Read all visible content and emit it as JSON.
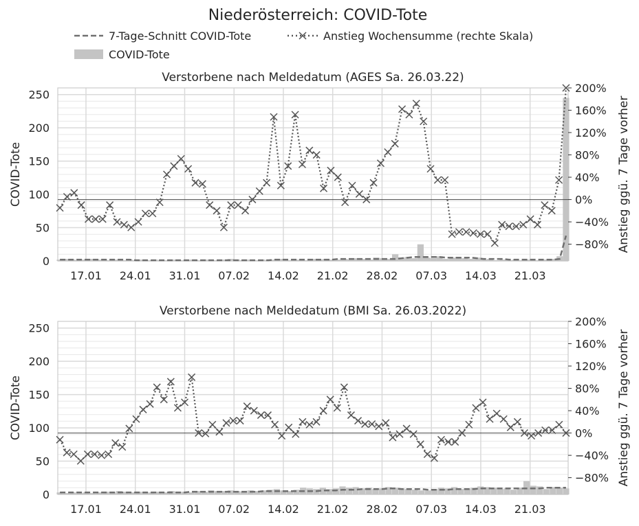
{
  "figure_title": "Niederösterreich: COVID-Tote",
  "legend": {
    "avg_label": "7-Tage-Schnitt COVID-Tote",
    "bar_label": "COVID-Tote",
    "change_label": "Anstieg Wochensumme (rechte Skala)",
    "placement": "top"
  },
  "colors": {
    "bar": "#c4c4c4",
    "avg_line": "#707070",
    "change_line": "#555555",
    "grid": "#dadada",
    "zero_line": "#444444"
  },
  "x_tick_labels": [
    "17.01",
    "24.01",
    "31.01",
    "07.02",
    "14.02",
    "21.02",
    "28.02",
    "07.03",
    "14.03",
    "21.03"
  ],
  "chart_data": [
    {
      "type": "bar",
      "title": "Verstorbene nach Meldedatum (AGES Sa. 26.03.22)",
      "ylabel": "COVID-Tote",
      "ylabel_right": "Anstieg ggü. 7 Tage vorher",
      "ylim": [
        0,
        260
      ],
      "y_ticks": [
        0,
        50,
        100,
        150,
        200,
        250
      ],
      "y2lim": [
        -110,
        200
      ],
      "y2_ticks": [
        "−80%",
        "−40%",
        "0%",
        "40%",
        "80%",
        "120%",
        "160%",
        "200%"
      ],
      "y2_tick_values": [
        -80,
        -40,
        0,
        40,
        80,
        120,
        160,
        200
      ],
      "grid": true,
      "x_start": "13.01",
      "x_end": "26.03",
      "bars": [
        2,
        3,
        2,
        1,
        2,
        3,
        2,
        2,
        1,
        2,
        1,
        2,
        1,
        2,
        1,
        2,
        1,
        1,
        2,
        1,
        1,
        2,
        1,
        2,
        1,
        1,
        2,
        3,
        2,
        1,
        2,
        1,
        2,
        1,
        2,
        3,
        1,
        2,
        2,
        1,
        3,
        2,
        3,
        2,
        2,
        3,
        2,
        4,
        3,
        2,
        5,
        4,
        3,
        10,
        5,
        6,
        4,
        25,
        5,
        4,
        7,
        3,
        5,
        6,
        4,
        3,
        5,
        2,
        3,
        1,
        2,
        1,
        2,
        1,
        2,
        1,
        1,
        2,
        3,
        7,
        245
      ],
      "avg": [
        2,
        2,
        2,
        2,
        2,
        2,
        2,
        2,
        2,
        2,
        2,
        2,
        1,
        1,
        1,
        1,
        1,
        1,
        1,
        1,
        1,
        1,
        1,
        1,
        1,
        1,
        1,
        1,
        1,
        1,
        1,
        1,
        1,
        1,
        2,
        2,
        2,
        2,
        2,
        2,
        2,
        2,
        2,
        2,
        3,
        3,
        3,
        3,
        3,
        3,
        3,
        3,
        3,
        3,
        4,
        5,
        6,
        6,
        6,
        6,
        6,
        5,
        5,
        5,
        5,
        5,
        4,
        3,
        3,
        3,
        3,
        2,
        2,
        2,
        2,
        2,
        2,
        2,
        2,
        3,
        38
      ],
      "change": [
        -15,
        5,
        12,
        -10,
        -35,
        -35,
        -35,
        -10,
        -40,
        -45,
        -50,
        -40,
        -25,
        -25,
        -5,
        45,
        60,
        73,
        55,
        30,
        28,
        -10,
        -20,
        -50,
        -10,
        -10,
        -20,
        0,
        15,
        30,
        148,
        25,
        60,
        152,
        63,
        88,
        80,
        20,
        52,
        40,
        -5,
        25,
        10,
        0,
        30,
        65,
        85,
        100,
        162,
        152,
        172,
        140,
        55,
        35,
        35,
        -62,
        -58,
        -58,
        -60,
        -62,
        -62,
        -78,
        -45,
        -48,
        -48,
        -45,
        -35,
        -45,
        -10,
        -20,
        35,
        200
      ]
    },
    {
      "type": "bar",
      "title": "Verstorbene nach Meldedatum (BMI Sa. 26.03.2022)",
      "ylabel": "COVID-Tote",
      "ylabel_right": "Anstieg ggü. 7 Tage vorher",
      "ylim": [
        0,
        260
      ],
      "y_ticks": [
        0,
        50,
        100,
        150,
        200,
        250
      ],
      "y2lim": [
        -110,
        200
      ],
      "y2_ticks": [
        "−80%",
        "−40%",
        "0%",
        "40%",
        "80%",
        "120%",
        "160%",
        "200%"
      ],
      "y2_tick_values": [
        -80,
        -40,
        0,
        40,
        80,
        120,
        160,
        200
      ],
      "grid": true,
      "x_start": "13.01",
      "x_end": "26.03",
      "bars": [
        3,
        2,
        3,
        2,
        3,
        2,
        3,
        4,
        3,
        5,
        4,
        3,
        4,
        3,
        3,
        4,
        3,
        5,
        4,
        4,
        3,
        5,
        4,
        6,
        5,
        5,
        6,
        5,
        4,
        6,
        5,
        6,
        7,
        8,
        6,
        5,
        7,
        10,
        9,
        8,
        10,
        8,
        9,
        12,
        10,
        11,
        9,
        10,
        8,
        9,
        11,
        10,
        9,
        8,
        7,
        6,
        6,
        8,
        10,
        9,
        11,
        8,
        9,
        10,
        12,
        11,
        10,
        8,
        9,
        7,
        10,
        20,
        13,
        12,
        8,
        11,
        10,
        9
      ],
      "avg": [
        3,
        3,
        3,
        3,
        3,
        3,
        3,
        3,
        3,
        3,
        3,
        3,
        3,
        3,
        3,
        3,
        3,
        3,
        3,
        3,
        4,
        4,
        4,
        4,
        4,
        4,
        4,
        4,
        4,
        4,
        4,
        5,
        5,
        5,
        5,
        5,
        5,
        5,
        5,
        5,
        6,
        6,
        6,
        7,
        7,
        7,
        8,
        8,
        8,
        8,
        9,
        9,
        8,
        8,
        8,
        8,
        7,
        7,
        7,
        7,
        8,
        8,
        8,
        8,
        9,
        9,
        9,
        9,
        9,
        9,
        9,
        9,
        9,
        9,
        10,
        10,
        10,
        10
      ],
      "change": [
        -12,
        -35,
        -38,
        -50,
        -38,
        -38,
        -40,
        -38,
        -18,
        -25,
        8,
        25,
        42,
        52,
        82,
        60,
        92,
        45,
        55,
        100,
        0,
        -1,
        15,
        2,
        18,
        22,
        22,
        48,
        40,
        32,
        32,
        15,
        -5,
        10,
        -2,
        20,
        15,
        20,
        40,
        60,
        45,
        82,
        32,
        22,
        16,
        16,
        12,
        18,
        -8,
        -2,
        8,
        -2,
        -20,
        -38,
        -45,
        -12,
        -16,
        -16,
        0,
        15,
        45,
        55,
        25,
        35,
        25,
        10,
        20,
        0,
        -5,
        0,
        5,
        5,
        15,
        0
      ]
    }
  ]
}
